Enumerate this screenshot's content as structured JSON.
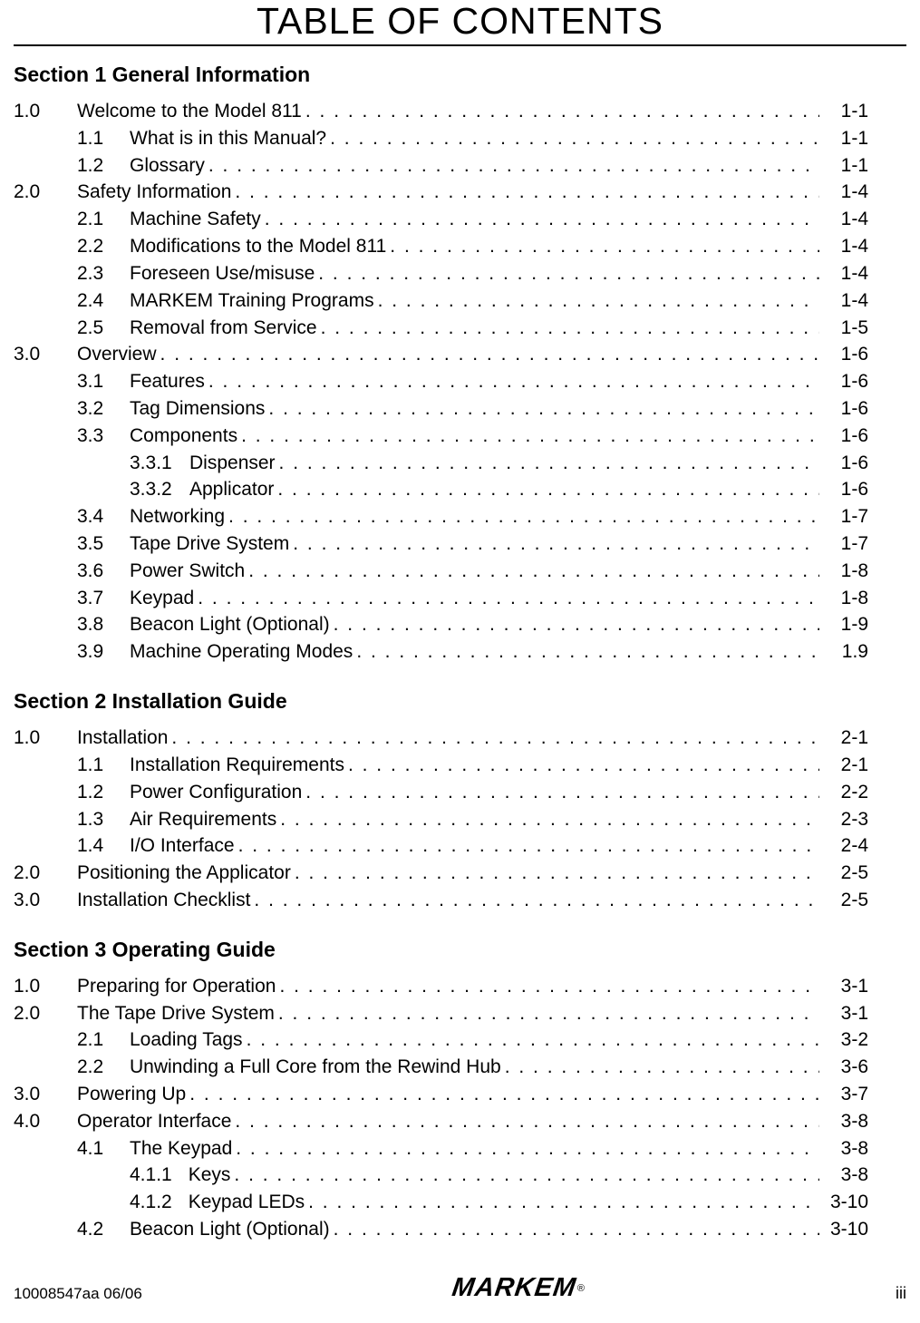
{
  "title": "TABLE OF CONTENTS",
  "footer": {
    "left": "10008547aa 06/06",
    "center": "MARKEM",
    "reg": "®",
    "right": "iii"
  },
  "sections": [
    {
      "header": "Section 1   General Information",
      "entries": [
        {
          "level": 0,
          "num": "1.0",
          "label": "Welcome to the Model 811",
          "page": "1-1"
        },
        {
          "level": 1,
          "num": "1.1",
          "label": "What is in this Manual?",
          "page": "1-1"
        },
        {
          "level": 1,
          "num": "1.2",
          "label": "Glossary",
          "page": "1-1"
        },
        {
          "level": 0,
          "num": "2.0",
          "label": "Safety Information",
          "page": "1-4"
        },
        {
          "level": 1,
          "num": "2.1",
          "label": "Machine Safety",
          "page": "1-4"
        },
        {
          "level": 1,
          "num": "2.2",
          "label": "Modifications to the Model 811",
          "page": "1-4"
        },
        {
          "level": 1,
          "num": "2.3",
          "label": "Foreseen Use/misuse",
          "page": "1-4"
        },
        {
          "level": 1,
          "num": "2.4",
          "label": "MARKEM Training Programs",
          "page": "1-4"
        },
        {
          "level": 1,
          "num": "2.5",
          "label": "Removal from Service",
          "page": "1-5"
        },
        {
          "level": 0,
          "num": "3.0",
          "label": "Overview",
          "page": "1-6"
        },
        {
          "level": 1,
          "num": "3.1",
          "label": "Features",
          "page": "1-6"
        },
        {
          "level": 1,
          "num": "3.2",
          "label": "Tag Dimensions",
          "page": "1-6"
        },
        {
          "level": 1,
          "num": "3.3",
          "label": "Components",
          "page": "1-6"
        },
        {
          "level": 2,
          "num": "3.3.1",
          "label": "Dispenser",
          "page": "1-6"
        },
        {
          "level": 2,
          "num": "3.3.2",
          "label": "Applicator",
          "page": "1-6"
        },
        {
          "level": 1,
          "num": "3.4",
          "label": "Networking",
          "page": "1-7"
        },
        {
          "level": 1,
          "num": "3.5",
          "label": "Tape Drive System",
          "page": "1-7"
        },
        {
          "level": 1,
          "num": "3.6",
          "label": "Power Switch",
          "page": "1-8"
        },
        {
          "level": 1,
          "num": "3.7",
          "label": "Keypad",
          "page": "1-8"
        },
        {
          "level": 1,
          "num": "3.8",
          "label": "Beacon Light (Optional)",
          "page": "1-9"
        },
        {
          "level": 1,
          "num": "3.9",
          "label": "Machine Operating Modes",
          "page": "1.9"
        }
      ]
    },
    {
      "header": "Section 2  Installation Guide",
      "entries": [
        {
          "level": 0,
          "num": "1.0",
          "label": "Installation   ",
          "page": "2-1"
        },
        {
          "level": 1,
          "num": "1.1",
          "label": "Installation Requirements",
          "page": "2-1"
        },
        {
          "level": 1,
          "num": "1.2",
          "label": "Power Configuration",
          "page": "2-2"
        },
        {
          "level": 1,
          "num": "1.3",
          "label": "Air Requirements",
          "page": "2-3"
        },
        {
          "level": 1,
          "num": "1.4",
          "label": "I/O Interface",
          "page": "2-4"
        },
        {
          "level": 0,
          "num": "2.0",
          "label": "Positioning the Applicator ",
          "page": "2-5"
        },
        {
          "level": 0,
          "num": "3.0",
          "label": "Installation Checklist",
          "page": "2-5"
        }
      ]
    },
    {
      "header": "Section 3   Operating Guide",
      "entries": [
        {
          "level": 0,
          "num": "1.0",
          "label": "Preparing for Operation",
          "page": "3-1"
        },
        {
          "level": 0,
          "num": "2.0",
          "label": "The Tape Drive System",
          "page": "3-1"
        },
        {
          "level": 1,
          "num": "2.1",
          "label": "Loading Tags",
          "page": "3-2"
        },
        {
          "level": 1,
          "num": "2.2",
          "label": "Unwinding a Full Core from the Rewind Hub",
          "page": "3-6"
        },
        {
          "level": 0,
          "num": "3.0",
          "label": "Powering Up  ",
          "page": "3-7"
        },
        {
          "level": 0,
          "num": "4.0",
          "label": "Operator Interface",
          "page": "3-8"
        },
        {
          "level": 1,
          "num": "4.1",
          "label": "The Keypad",
          "page": "3-8"
        },
        {
          "level": "2b",
          "num": "4.1.1",
          "label": "Keys",
          "page": "3-8"
        },
        {
          "level": "2b",
          "num": "4.1.2",
          "label": "Keypad LEDs",
          "page": "3-10"
        },
        {
          "level": 1,
          "num": "4.2",
          "label": "Beacon Light (Optional)",
          "page": "3-10"
        }
      ]
    }
  ]
}
